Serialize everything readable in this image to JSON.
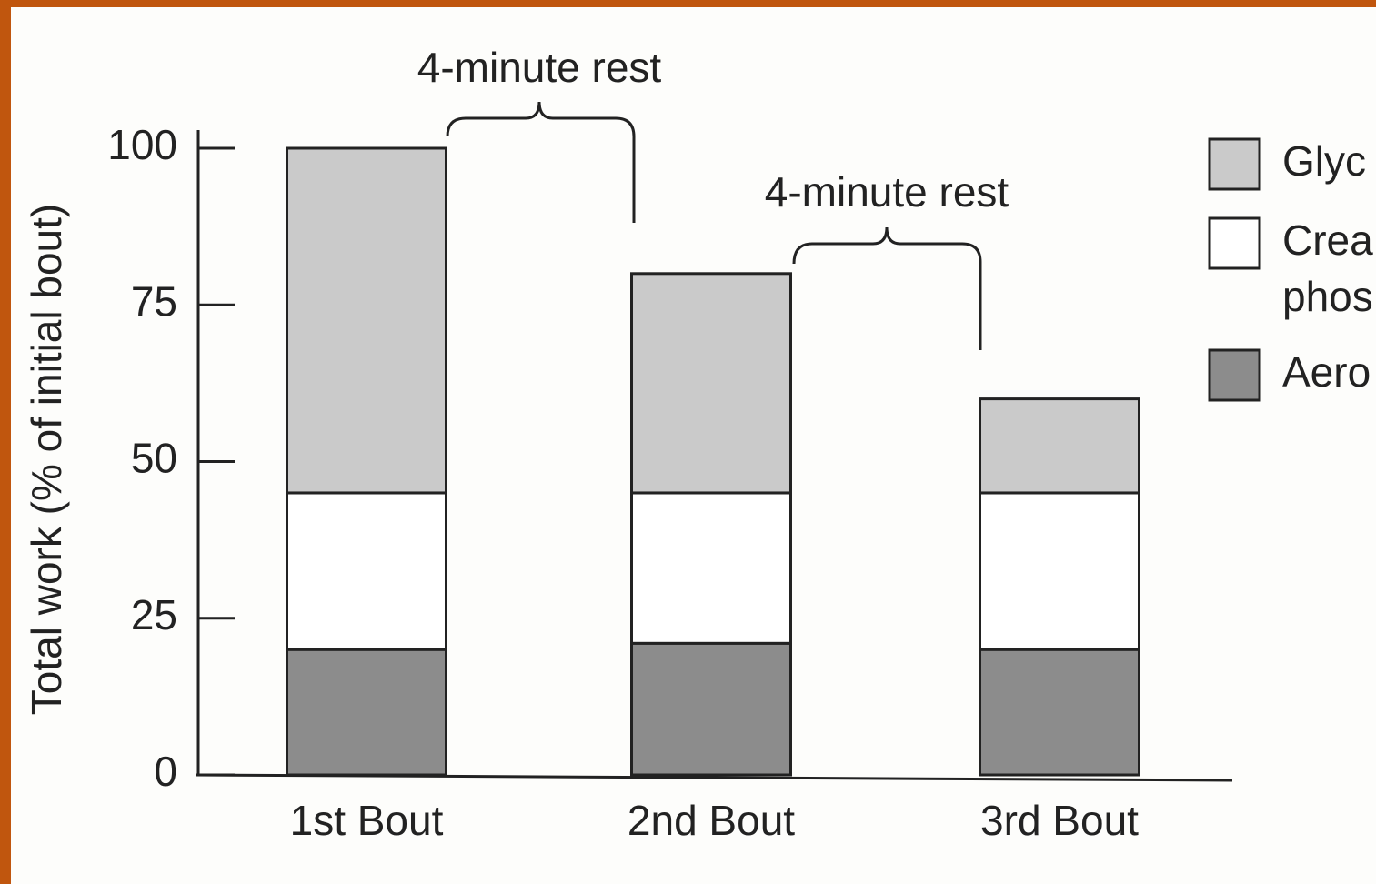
{
  "chart_data": {
    "type": "stacked_bar",
    "y_label": "Total work (% of initial bout)",
    "categories": [
      "1st Bout",
      "2nd Bout",
      "3rd Bout"
    ],
    "series": [
      {
        "name": "Aero",
        "color": "#8c8c8c",
        "values": [
          20,
          21,
          20
        ]
      },
      {
        "name": "Crea phos",
        "color": "#ffffff",
        "values": [
          25,
          24,
          25
        ]
      },
      {
        "name": "Glyc",
        "color": "#cacaca",
        "values": [
          55,
          35,
          15
        ]
      }
    ],
    "annotations": [
      "4-minute rest",
      "4-minute rest"
    ],
    "ylim": [
      0,
      100
    ],
    "yticks": [
      0,
      25,
      50,
      75,
      100
    ],
    "grid": false,
    "legend": "right"
  }
}
